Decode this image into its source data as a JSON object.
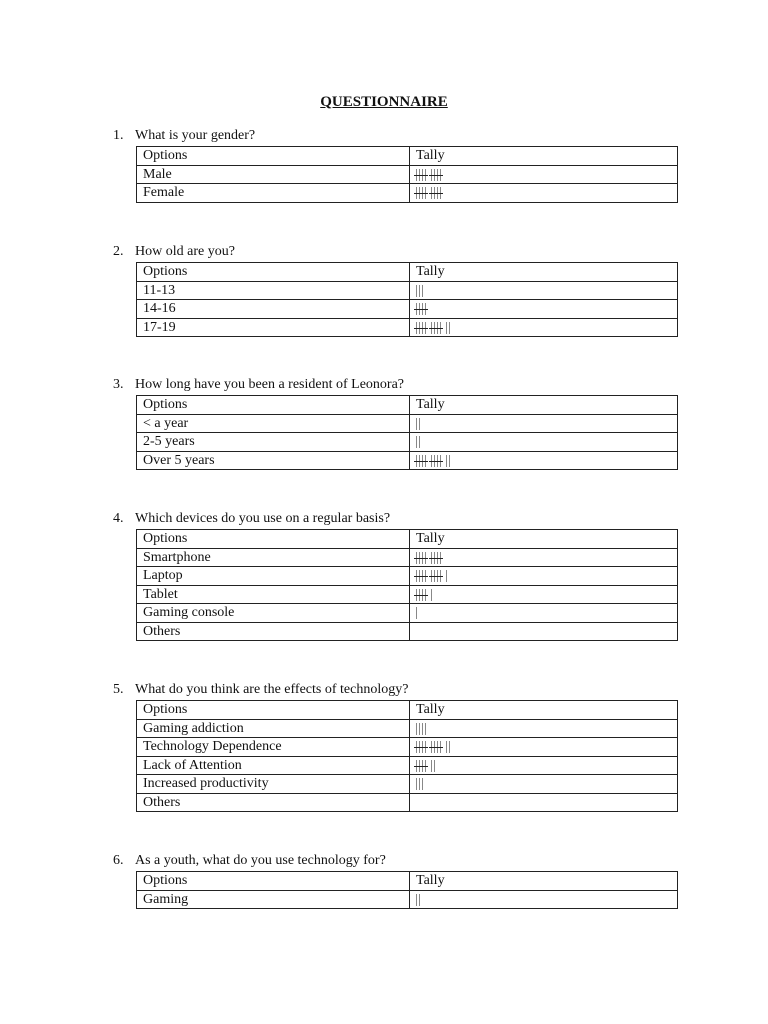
{
  "title": "QUESTIONNAIRE",
  "header": {
    "options": "Options",
    "tally": "Tally"
  },
  "questions": [
    {
      "number": "1.",
      "text": "What is your gender?",
      "rows": [
        {
          "option": "Male",
          "tally": 10
        },
        {
          "option": "Female",
          "tally": 10
        }
      ]
    },
    {
      "number": "2.",
      "text": "How old are you?",
      "rows": [
        {
          "option": "11-13",
          "tally": 3
        },
        {
          "option": "14-16",
          "tally": 5
        },
        {
          "option": "17-19",
          "tally": 12
        }
      ]
    },
    {
      "number": "3.",
      "text": "How long have you been a resident of Leonora?",
      "rows": [
        {
          "option": "< a year",
          "tally": 2
        },
        {
          "option": "2-5 years",
          "tally": 2
        },
        {
          "option": "Over 5 years",
          "tally": 12
        }
      ]
    },
    {
      "number": "4.",
      "text": "Which devices do you use on a regular basis?",
      "rows": [
        {
          "option": "Smartphone",
          "tally": 10
        },
        {
          "option": "Laptop",
          "tally": 11
        },
        {
          "option": "Tablet",
          "tally": 6
        },
        {
          "option": "Gaming console",
          "tally": 1
        },
        {
          "option": "Others",
          "tally": 0
        }
      ]
    },
    {
      "number": "5.",
      "text": "What do you think are the effects of technology?",
      "rows": [
        {
          "option": "Gaming addiction",
          "tally": 4
        },
        {
          "option": "Technology Dependence",
          "tally": 12
        },
        {
          "option": "Lack of Attention",
          "tally": 7
        },
        {
          "option": "Increased productivity",
          "tally": 3
        },
        {
          "option": "Others",
          "tally": 0
        }
      ]
    },
    {
      "number": "6.",
      "text": "As a youth, what do you use technology for?",
      "rows": [
        {
          "option": "Gaming",
          "tally": 2
        }
      ]
    }
  ]
}
